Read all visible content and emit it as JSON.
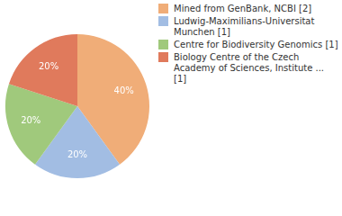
{
  "chart_data": {
    "type": "pie",
    "categories": [
      "Mined from GenBank, NCBI [2]",
      "Ludwig-Maximilians-Universitat Munchen [1]",
      "Centre for Biodiversity Genomics [1]",
      "Biology Centre of the Czech Academy of Sciences, Institute ... [1]"
    ],
    "values": [
      40,
      20,
      20,
      20
    ],
    "value_labels": [
      "40%",
      "20%",
      "20%",
      "20%"
    ],
    "colors": [
      "#f0ad78",
      "#a2bde3",
      "#a0c97c",
      "#e07a5c"
    ],
    "data_labels": true,
    "legend": "right"
  }
}
